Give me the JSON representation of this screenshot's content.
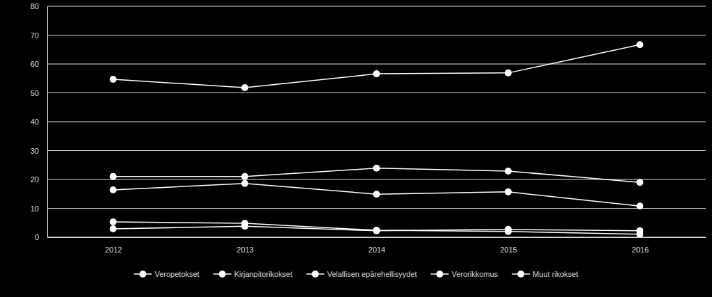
{
  "chart_data": {
    "type": "line",
    "categories": [
      "2012",
      "2013",
      "2014",
      "2015",
      "2016"
    ],
    "series": [
      {
        "name": "Veropetokset",
        "color": "#ffffff",
        "marker": "circle",
        "values": [
          54.7,
          51.8,
          56.6,
          56.9,
          66.7
        ]
      },
      {
        "name": "Kirjanpitorikokset",
        "color": "#ffffff",
        "marker": "circle",
        "values": [
          21.0,
          21.0,
          23.9,
          22.9,
          19.0
        ]
      },
      {
        "name": "Velallisen epärehellisyydet",
        "color": "#ffffff",
        "marker": "circle",
        "values": [
          16.4,
          18.6,
          14.9,
          15.7,
          10.8
        ]
      },
      {
        "name": "Verorikkomus",
        "color": "#ffffff",
        "marker": "circle",
        "values": [
          5.3,
          4.8,
          2.4,
          2.0,
          1.0
        ]
      },
      {
        "name": "Muut rikokset",
        "color": "#ffffff",
        "marker": "circle",
        "values": [
          2.9,
          3.8,
          2.2,
          2.7,
          2.2
        ]
      }
    ],
    "ylim": [
      0,
      80
    ],
    "yticks": [
      0,
      10,
      20,
      30,
      40,
      50,
      60,
      70,
      80
    ],
    "grid": true,
    "legend": "bottom"
  }
}
